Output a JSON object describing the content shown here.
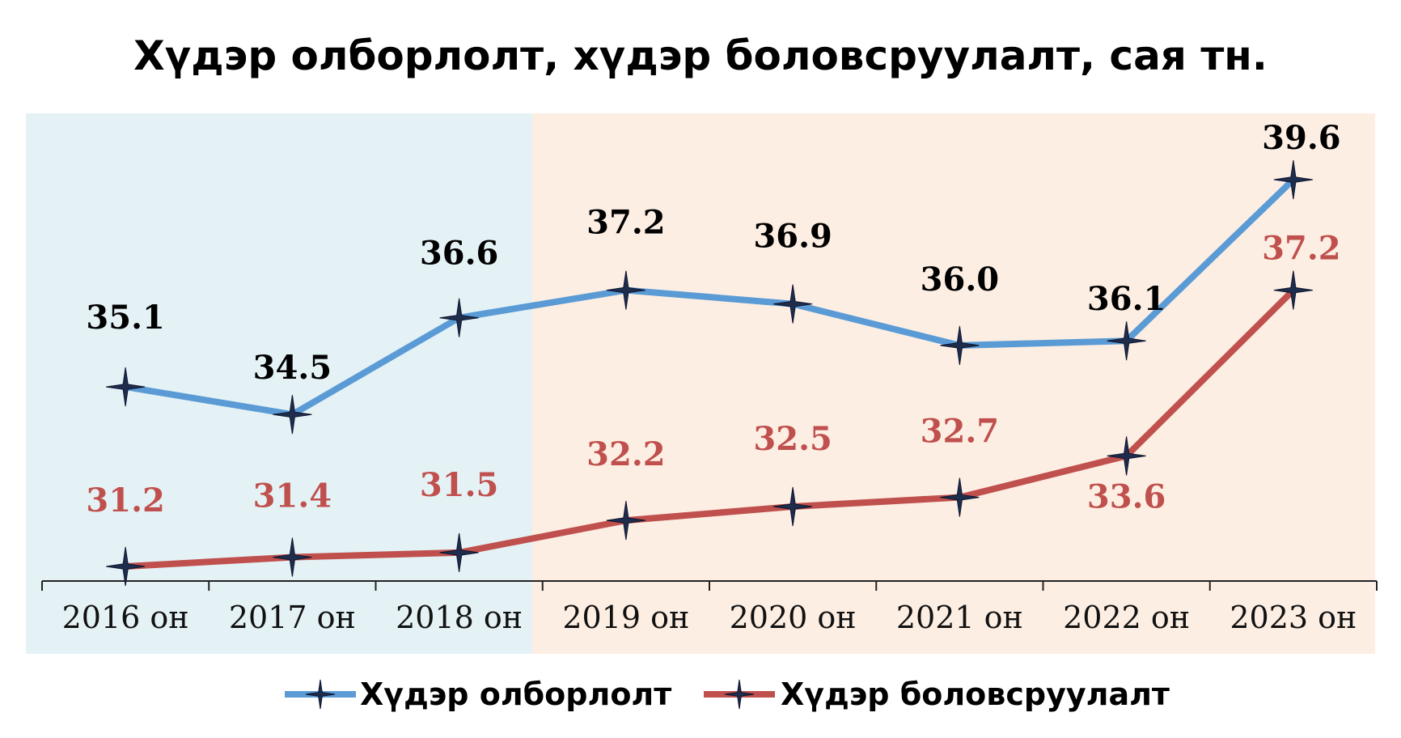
{
  "chart_data": {
    "type": "line",
    "title": "Хүдэр олборлолт, хүдэр боловсруулалт, сая тн.",
    "categories": [
      "2016 он",
      "2017 он",
      "2018 он",
      "2019 он",
      "2020 он",
      "2021 он",
      "2022 он",
      "2023 он"
    ],
    "series": [
      {
        "name": "Хүдэр олборлолт",
        "color": "#5b9bd5",
        "labels_color": "#000000",
        "values": [
          35.1,
          34.5,
          36.6,
          37.2,
          36.9,
          36.0,
          36.1,
          39.6
        ],
        "labels": [
          "35.1",
          "34.5",
          "36.6",
          "37.2",
          "36.9",
          "36.0",
          "36.1",
          "39.6"
        ]
      },
      {
        "name": "Хүдэр боловсруулалт",
        "color": "#c0504d",
        "labels_color": "#c0504d",
        "values": [
          31.2,
          31.4,
          31.5,
          32.2,
          32.5,
          32.7,
          33.6,
          37.2
        ],
        "labels": [
          "31.2",
          "31.4",
          "31.5",
          "32.2",
          "32.5",
          "32.7",
          "33.6",
          "37.2"
        ]
      }
    ],
    "background_bands": [
      {
        "from": "2016 он",
        "to": "2018 он",
        "color": "#e4f2f6"
      },
      {
        "from": "2019 он",
        "to": "2023 он",
        "color": "#fdeee3"
      }
    ],
    "marker": "four-point-star",
    "grid": false,
    "legend_position": "bottom",
    "y_axis_visible": false
  }
}
